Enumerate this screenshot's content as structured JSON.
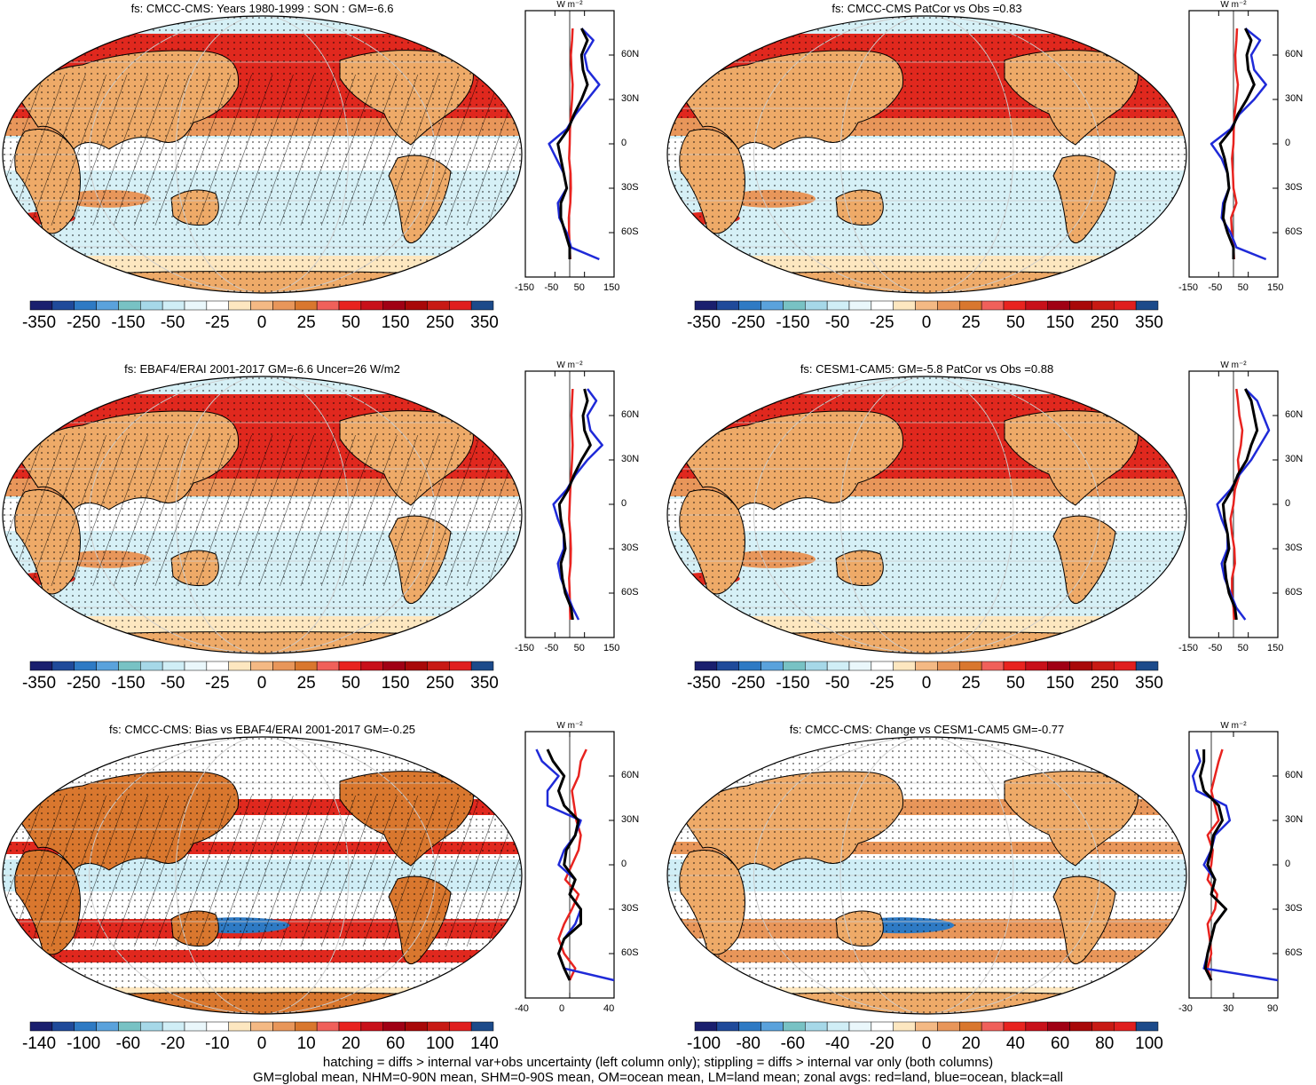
{
  "colors": {
    "scale": [
      "#1a1f6e",
      "#1f4a9a",
      "#2e7ac4",
      "#5aa2dc",
      "#78c2c4",
      "#a6d8e8",
      "#d0eef6",
      "#eaf7fb",
      "#ffffff",
      "#fde7c0",
      "#f4b984",
      "#e8965a",
      "#d9772e",
      "#f0605a",
      "#e8231f",
      "#c8101a",
      "#a00014",
      "#a80808",
      "#c81a14",
      "#e01e1e",
      "#1c4a8a"
    ],
    "land_warm": "#eeaa68",
    "ocean_red": "#e0281e",
    "ocean_pale": "#d6f0f6",
    "line_red": "#e8231f",
    "line_blue": "#1f2ad8",
    "line_black": "#000000"
  },
  "panels": [
    {
      "title": "fs: CMCC-CMS: Years 1980-1999 : SON : GM=-6.6",
      "colorbar_labels": [
        "-350",
        "-250",
        "-150",
        "-50",
        "-25",
        "0",
        "25",
        "50",
        "150",
        "250",
        "350"
      ],
      "zonal_x_ticks": [
        "-150",
        "-50",
        "50",
        "150"
      ],
      "zonal_units": "W m⁻²",
      "lat_labels": [
        "60N",
        "30N",
        "0",
        "30S",
        "60S"
      ],
      "hatching": true
    },
    {
      "title": "fs: CMCC-CMS PatCor vs Obs =0.83",
      "colorbar_labels": [
        "-350",
        "-250",
        "-150",
        "-50",
        "-25",
        "0",
        "25",
        "50",
        "150",
        "250",
        "350"
      ],
      "zonal_x_ticks": [
        "-150",
        "-50",
        "50",
        "150"
      ],
      "zonal_units": "W m⁻²",
      "lat_labels": [
        "60N",
        "30N",
        "0",
        "30S",
        "60S"
      ],
      "hatching": false
    },
    {
      "title": "fs: EBAF4/ERAI 2001-2017 GM=-6.6 Uncer=26 W/m2",
      "colorbar_labels": [
        "-350",
        "-250",
        "-150",
        "-50",
        "-25",
        "0",
        "25",
        "50",
        "150",
        "250",
        "350"
      ],
      "zonal_x_ticks": [
        "-150",
        "-50",
        "50",
        "150"
      ],
      "zonal_units": "W m⁻²",
      "lat_labels": [
        "60N",
        "30N",
        "0",
        "30S",
        "60S"
      ],
      "hatching": true
    },
    {
      "title": "fs: CESM1-CAM5: GM=-5.8 PatCor vs Obs =0.88",
      "colorbar_labels": [
        "-350",
        "-250",
        "-150",
        "-50",
        "-25",
        "0",
        "25",
        "50",
        "150",
        "250",
        "350"
      ],
      "zonal_x_ticks": [
        "-150",
        "-50",
        "50",
        "150"
      ],
      "zonal_units": "W m⁻²",
      "lat_labels": [
        "60N",
        "30N",
        "0",
        "30S",
        "60S"
      ],
      "hatching": false
    },
    {
      "title": "fs: CMCC-CMS: Bias vs EBAF4/ERAI 2001-2017  GM=-0.25",
      "colorbar_labels": [
        "-140",
        "-100",
        "-60",
        "-20",
        "-10",
        "0",
        "10",
        "20",
        "60",
        "100",
        "140"
      ],
      "zonal_x_ticks": [
        "-40",
        "0",
        "40"
      ],
      "zonal_units": "W m⁻²",
      "lat_labels": [
        "60N",
        "30N",
        "0",
        "30S",
        "60S"
      ],
      "hatching": true
    },
    {
      "title": "fs: CMCC-CMS: Change vs CESM1-CAM5 GM=-0.77",
      "colorbar_labels": [
        "-100",
        "-80",
        "-60",
        "-40",
        "-20",
        "0",
        "20",
        "40",
        "60",
        "80",
        "100"
      ],
      "zonal_x_ticks": [
        "-30",
        "30",
        "90"
      ],
      "zonal_units": "W m⁻²",
      "lat_labels": [
        "60N",
        "30N",
        "0",
        "30S",
        "60S"
      ],
      "hatching": false
    }
  ],
  "footer": {
    "line1": "hatching = diffs > internal var+obs uncertainty (left column only); stippling = diffs > internal var only (both columns)",
    "line2": "GM=global mean, NHM=0-90N mean, SHM=0-90S mean, OM=ocean mean, LM=land mean; zonal avgs: red=land, blue=ocean, black=all"
  },
  "chart_data": [
    {
      "type": "heatmap",
      "title": "fs: CMCC-CMS: Years 1980-1999 : SON : GM=-6.6",
      "zonal_avg": {
        "lat": [
          -78,
          -70,
          -60,
          -50,
          -40,
          -30,
          -20,
          -10,
          0,
          10,
          20,
          30,
          40,
          50,
          60,
          70,
          78
        ],
        "land": [
          2,
          0,
          -2,
          -3,
          2,
          4,
          3,
          -2,
          0,
          1,
          4,
          8,
          10,
          6,
          4,
          8,
          10
        ],
        "ocean": [
          100,
          5,
          -10,
          -35,
          -40,
          -10,
          -20,
          -45,
          -70,
          -10,
          20,
          60,
          100,
          60,
          50,
          80,
          40
        ],
        "all": [
          0,
          0,
          -15,
          -30,
          -30,
          -10,
          -20,
          -30,
          -40,
          -5,
          15,
          40,
          60,
          45,
          40,
          60,
          40
        ]
      }
    },
    {
      "type": "heatmap",
      "title": "fs: CMCC-CMS PatCor vs Obs =0.83",
      "zonal_avg": {
        "lat": [
          -78,
          -70,
          -60,
          -50,
          -40,
          -30,
          -20,
          -10,
          0,
          10,
          20,
          30,
          40,
          50,
          60,
          70,
          78
        ],
        "land": [
          2,
          0,
          -5,
          -8,
          10,
          0,
          -2,
          -5,
          0,
          1,
          4,
          10,
          15,
          8,
          6,
          10,
          12
        ],
        "ocean": [
          110,
          10,
          -10,
          -40,
          -35,
          -15,
          -20,
          -40,
          -75,
          -10,
          20,
          70,
          110,
          70,
          60,
          90,
          40
        ],
        "all": [
          0,
          0,
          -20,
          -35,
          -30,
          -15,
          -20,
          -30,
          -45,
          -5,
          15,
          45,
          70,
          50,
          45,
          60,
          40
        ]
      }
    },
    {
      "type": "heatmap",
      "title": "fs: EBAF4/ERAI 2001-2017 GM=-6.6 Uncer=26 W/m2",
      "zonal_avg": {
        "lat": [
          -78,
          -70,
          -60,
          -50,
          -40,
          -30,
          -20,
          -10,
          0,
          10,
          20,
          30,
          40,
          50,
          60,
          70,
          78
        ],
        "land": [
          2,
          1,
          0,
          -2,
          3,
          4,
          2,
          -2,
          0,
          2,
          5,
          8,
          10,
          8,
          6,
          8,
          10
        ],
        "ocean": [
          30,
          10,
          -10,
          -30,
          -40,
          -20,
          -20,
          -40,
          -55,
          -10,
          20,
          60,
          110,
          70,
          60,
          90,
          60
        ],
        "all": [
          10,
          5,
          -15,
          -25,
          -30,
          -15,
          -20,
          -30,
          -35,
          -5,
          15,
          40,
          70,
          50,
          45,
          60,
          50
        ]
      }
    },
    {
      "type": "heatmap",
      "title": "fs: CESM1-CAM5: GM=-5.8 PatCor vs Obs =0.88",
      "zonal_avg": {
        "lat": [
          -78,
          -70,
          -60,
          -50,
          -40,
          -30,
          -20,
          -10,
          0,
          10,
          20,
          30,
          40,
          50,
          60,
          70,
          78
        ],
        "land": [
          2,
          0,
          -5,
          -5,
          5,
          3,
          -5,
          -10,
          0,
          5,
          20,
          15,
          25,
          30,
          20,
          15,
          10
        ],
        "ocean": [
          40,
          10,
          -10,
          -30,
          -40,
          -20,
          -20,
          -40,
          -55,
          -10,
          20,
          60,
          90,
          120,
          100,
          80,
          40
        ],
        "all": [
          10,
          5,
          -15,
          -25,
          -30,
          -15,
          -20,
          -30,
          -35,
          -5,
          15,
          45,
          60,
          80,
          70,
          60,
          40
        ]
      }
    },
    {
      "type": "heatmap",
      "title": "fs: CMCC-CMS: Bias vs EBAF4/ERAI 2001-2017  GM=-0.25",
      "zonal_avg": {
        "lat": [
          -78,
          -70,
          -60,
          -50,
          -40,
          -30,
          -20,
          -10,
          0,
          10,
          20,
          30,
          40,
          50,
          60,
          70,
          78
        ],
        "land": [
          0,
          5,
          -5,
          -10,
          -5,
          2,
          8,
          -4,
          2,
          8,
          10,
          6,
          4,
          2,
          8,
          10,
          15
        ],
        "ocean": [
          55,
          -5,
          -10,
          -5,
          5,
          10,
          0,
          5,
          -10,
          -5,
          5,
          10,
          -20,
          -20,
          -10,
          -25,
          -30
        ],
        "all": [
          0,
          -5,
          -10,
          -5,
          10,
          10,
          0,
          5,
          -5,
          -3,
          5,
          8,
          -5,
          -10,
          -5,
          -15,
          -20
        ]
      }
    },
    {
      "type": "heatmap",
      "title": "fs: CMCC-CMS: Change vs CESM1-CAM5 GM=-0.77",
      "zonal_avg": {
        "lat": [
          -78,
          -70,
          -60,
          -50,
          -40,
          -30,
          -20,
          -10,
          0,
          10,
          20,
          30,
          40,
          50,
          60,
          70,
          78
        ],
        "land": [
          0,
          -5,
          0,
          -2,
          -5,
          5,
          8,
          -5,
          0,
          2,
          -5,
          10,
          5,
          0,
          5,
          10,
          15
        ],
        "ocean": [
          130,
          -10,
          -5,
          0,
          5,
          20,
          0,
          5,
          -10,
          0,
          5,
          25,
          20,
          -20,
          -25,
          -15,
          -20
        ],
        "all": [
          0,
          -8,
          -5,
          0,
          5,
          20,
          0,
          5,
          -5,
          0,
          3,
          15,
          10,
          -10,
          -15,
          -10,
          -10
        ]
      }
    }
  ]
}
